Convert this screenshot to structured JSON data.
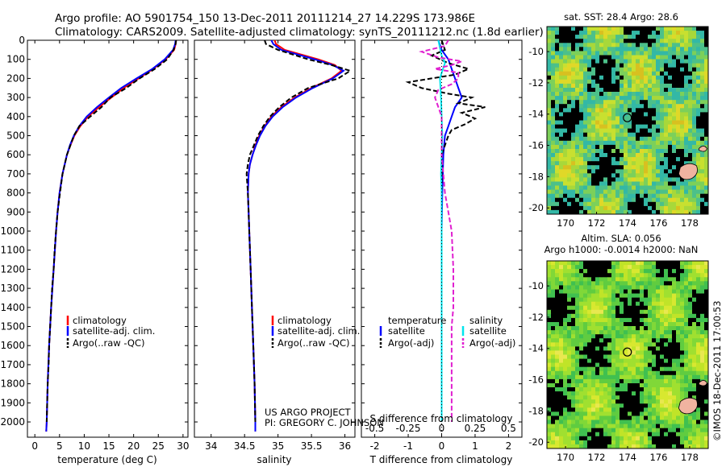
{
  "header": {
    "line1": "Argo profile: AO 5901754_150 13-Dec-2011 20111214_27 14.229S 173.986E",
    "line2": "Climatology: CARS2009. Satellite-adjusted climatology: synTS_20111212.nc (1.8d earlier)"
  },
  "maps": {
    "sst_title": "sat. SST: 28.4 Argo: 28.6",
    "sla_title1": "Altim. SLA: 0.056",
    "sla_title2": "Argo h1000: -0.0014 h2000: NaN",
    "lon_ticks": [
      170,
      172,
      174,
      176,
      178
    ],
    "lat_ticks": [
      -10,
      -12,
      -14,
      -16,
      -18,
      -20
    ],
    "lon_range": [
      168.8,
      179.2
    ],
    "lat_range": [
      -20.4,
      -8.4
    ],
    "argo_position": {
      "lon": 173.986,
      "lat": -14.229
    }
  },
  "project": {
    "line1": "US ARGO PROJECT",
    "line2": "PI: GREGORY C. JOHNSON"
  },
  "credit": "©IMOS 18-Dec-2011 17:00:53",
  "legend": {
    "clim": "climatology",
    "sat": "satellite-adj. clim.",
    "argo": "Argo(..raw -QC)",
    "diff_temp_header": "temperature",
    "diff_sal_header": "salinity",
    "diff_sat": "satellite",
    "diff_argo": "Argo(-adj)"
  },
  "colors": {
    "climatology": "#ff0000",
    "satellite": "#0000ff",
    "argo": "#000000",
    "diff_temp_satellite": "#0000ff",
    "diff_temp_argo": "#000000",
    "diff_sal_satellite": "#00e5ee",
    "diff_sal_argo": "#e020d0"
  },
  "chart_data": [
    {
      "type": "line",
      "panel": "temperature",
      "xlabel": "temperature (deg C)",
      "ylabel": "",
      "xlim": [
        -1.5,
        31
      ],
      "ylim": [
        2080,
        0
      ],
      "x_ticks": [
        0,
        5,
        10,
        15,
        20,
        25,
        30
      ],
      "y_ticks": [
        0,
        100,
        200,
        300,
        400,
        500,
        600,
        700,
        800,
        900,
        1000,
        1100,
        1200,
        1300,
        1400,
        1500,
        1600,
        1700,
        1800,
        1900,
        2000
      ],
      "y_reversed": true,
      "series": [
        {
          "name": "climatology",
          "depth": [
            0,
            20,
            50,
            100,
            150,
            200,
            250,
            300,
            350,
            400,
            450,
            500,
            550,
            600,
            700,
            800,
            900,
            1000,
            1200,
            1400,
            1600,
            1800,
            2000,
            2050
          ],
          "values": [
            28.6,
            28.5,
            28.2,
            26.5,
            24.0,
            21.0,
            18.0,
            15.5,
            13.0,
            10.8,
            9.2,
            8.0,
            7.2,
            6.5,
            5.6,
            5.0,
            4.6,
            4.3,
            3.8,
            3.3,
            2.9,
            2.6,
            2.4,
            2.3
          ]
        },
        {
          "name": "satellite-adj. clim.",
          "depth": [
            0,
            20,
            50,
            100,
            150,
            200,
            250,
            300,
            350,
            400,
            450,
            500,
            550,
            600,
            700,
            800,
            900,
            1000,
            1200,
            1400,
            1600,
            1800,
            2000,
            2050
          ],
          "values": [
            28.5,
            28.4,
            28.0,
            26.3,
            23.8,
            20.6,
            17.5,
            15.0,
            12.6,
            10.5,
            9.0,
            7.9,
            7.1,
            6.5,
            5.6,
            5.0,
            4.6,
            4.3,
            3.8,
            3.3,
            2.9,
            2.6,
            2.4,
            2.3
          ]
        },
        {
          "name": "Argo(..raw -QC)",
          "depth": [
            0,
            20,
            50,
            100,
            150,
            200,
            250,
            300,
            350,
            400,
            450,
            500,
            550,
            600,
            700,
            800,
            900,
            1000,
            1100,
            1200,
            1300,
            1400,
            1500,
            1600,
            1700,
            1800,
            1900,
            2000
          ],
          "values": [
            28.6,
            28.5,
            28.1,
            26.8,
            24.3,
            21.2,
            18.5,
            15.3,
            13.5,
            11.2,
            9.0,
            7.9,
            7.2,
            6.5,
            5.6,
            5.1,
            4.6,
            4.3,
            4.0,
            3.8,
            3.5,
            3.3,
            3.1,
            2.9,
            2.8,
            2.6,
            2.5,
            2.4
          ]
        }
      ]
    },
    {
      "type": "line",
      "panel": "salinity",
      "xlabel": "salinity",
      "ylabel": "",
      "xlim": [
        33.75,
        36.15
      ],
      "ylim": [
        2080,
        0
      ],
      "x_ticks": [
        34,
        34.5,
        35,
        35.5,
        36
      ],
      "y_reversed": true,
      "series": [
        {
          "name": "climatology",
          "depth": [
            0,
            20,
            50,
            100,
            130,
            160,
            200,
            250,
            300,
            350,
            400,
            450,
            500,
            550,
            600,
            650,
            700,
            800,
            900,
            1000,
            1200,
            1400,
            1600,
            1800,
            2000,
            2050
          ],
          "values": [
            34.95,
            34.97,
            35.1,
            35.6,
            35.85,
            35.95,
            35.8,
            35.5,
            35.25,
            35.05,
            34.9,
            34.8,
            34.72,
            34.66,
            34.62,
            34.58,
            34.56,
            34.55,
            34.56,
            34.57,
            34.59,
            34.61,
            34.63,
            34.65,
            34.66,
            34.66
          ]
        },
        {
          "name": "satellite-adj. clim.",
          "depth": [
            0,
            20,
            50,
            100,
            130,
            160,
            200,
            250,
            300,
            350,
            400,
            450,
            500,
            550,
            600,
            650,
            700,
            800,
            900,
            1000,
            1200,
            1400,
            1600,
            1800,
            2000,
            2050
          ],
          "values": [
            34.9,
            34.93,
            35.05,
            35.55,
            35.82,
            35.98,
            35.82,
            35.52,
            35.27,
            35.07,
            34.92,
            34.81,
            34.73,
            34.67,
            34.62,
            34.58,
            34.56,
            34.55,
            34.56,
            34.57,
            34.59,
            34.61,
            34.63,
            34.65,
            34.66,
            34.66
          ]
        },
        {
          "name": "Argo(..raw -QC)",
          "depth": [
            0,
            20,
            50,
            100,
            130,
            160,
            200,
            250,
            300,
            350,
            400,
            450,
            500,
            550,
            600,
            650,
            700,
            750,
            800,
            900,
            1000,
            1200,
            1400,
            1600,
            1800,
            2000
          ],
          "values": [
            34.8,
            34.82,
            35.0,
            35.45,
            35.8,
            36.08,
            35.9,
            35.45,
            35.2,
            35.02,
            34.88,
            34.78,
            34.7,
            34.64,
            34.58,
            34.55,
            34.53,
            34.54,
            34.55,
            34.56,
            34.57,
            34.59,
            34.61,
            34.63,
            34.65,
            34.66
          ]
        }
      ]
    },
    {
      "type": "line",
      "panel": "difference",
      "xlabel": "T difference from climatology",
      "xlabel_upper": "S difference from climatology",
      "xlim": [
        -2.4,
        2.4
      ],
      "ylim": [
        2080,
        0
      ],
      "x_ticks": [
        -2,
        -1,
        0,
        1,
        2
      ],
      "x_ticks_upper": [
        -0.5,
        -0.25,
        0,
        0.25,
        0.5
      ],
      "y_reversed": true,
      "series": [
        {
          "name": "temperature satellite",
          "depth": [
            0,
            50,
            100,
            150,
            200,
            250,
            300,
            350,
            400,
            450,
            500,
            600,
            800,
            1000,
            1500,
            2000
          ],
          "values": [
            -0.1,
            0.0,
            0.2,
            0.3,
            0.4,
            0.5,
            0.6,
            0.4,
            0.3,
            0.2,
            0.1,
            0.05,
            0.02,
            0.0,
            0.0,
            0.0
          ]
        },
        {
          "name": "temperature Argo(-adj)",
          "depth": [
            0,
            50,
            80,
            120,
            150,
            180,
            220,
            250,
            280,
            300,
            330,
            350,
            380,
            410,
            440,
            470,
            500,
            550,
            600,
            700,
            800,
            1000,
            1200,
            1400,
            1600,
            1800,
            2000
          ],
          "values": [
            0.0,
            0.1,
            -0.3,
            0.2,
            0.8,
            0.4,
            -1.0,
            -0.6,
            0.2,
            0.9,
            0.5,
            1.3,
            0.6,
            1.0,
            0.7,
            0.3,
            0.2,
            0.1,
            0.0,
            0.0,
            0.0,
            0.0,
            0.0,
            0.0,
            0.0,
            0.0,
            0.0
          ]
        },
        {
          "name": "salinity satellite",
          "depth": [
            0,
            40,
            80,
            120,
            160,
            200,
            300,
            400,
            500,
            600,
            700,
            800,
            1000,
            1500,
            2000
          ],
          "values": [
            -0.1,
            -0.05,
            0.0,
            0.1,
            0.02,
            -0.05,
            -0.02,
            0.0,
            0.02,
            0.0,
            -0.02,
            0.0,
            0.0,
            0.0,
            0.0
          ]
        },
        {
          "name": "salinity Argo(-adj)",
          "depth": [
            0,
            30,
            60,
            90,
            110,
            130,
            150,
            170,
            200,
            230,
            260,
            300,
            350,
            400,
            500,
            600,
            800,
            900,
            1000,
            1200,
            1400,
            1500,
            1600,
            1800,
            2000
          ],
          "values": [
            0.2,
            0.1,
            -0.6,
            -0.1,
            0.6,
            0.3,
            -0.2,
            0.5,
            0.5,
            0.3,
            -0.1,
            -0.2,
            -0.1,
            0.0,
            0.0,
            0.0,
            0.1,
            0.2,
            0.3,
            0.35,
            0.35,
            0.3,
            0.3,
            0.3,
            0.3
          ]
        }
      ]
    }
  ]
}
